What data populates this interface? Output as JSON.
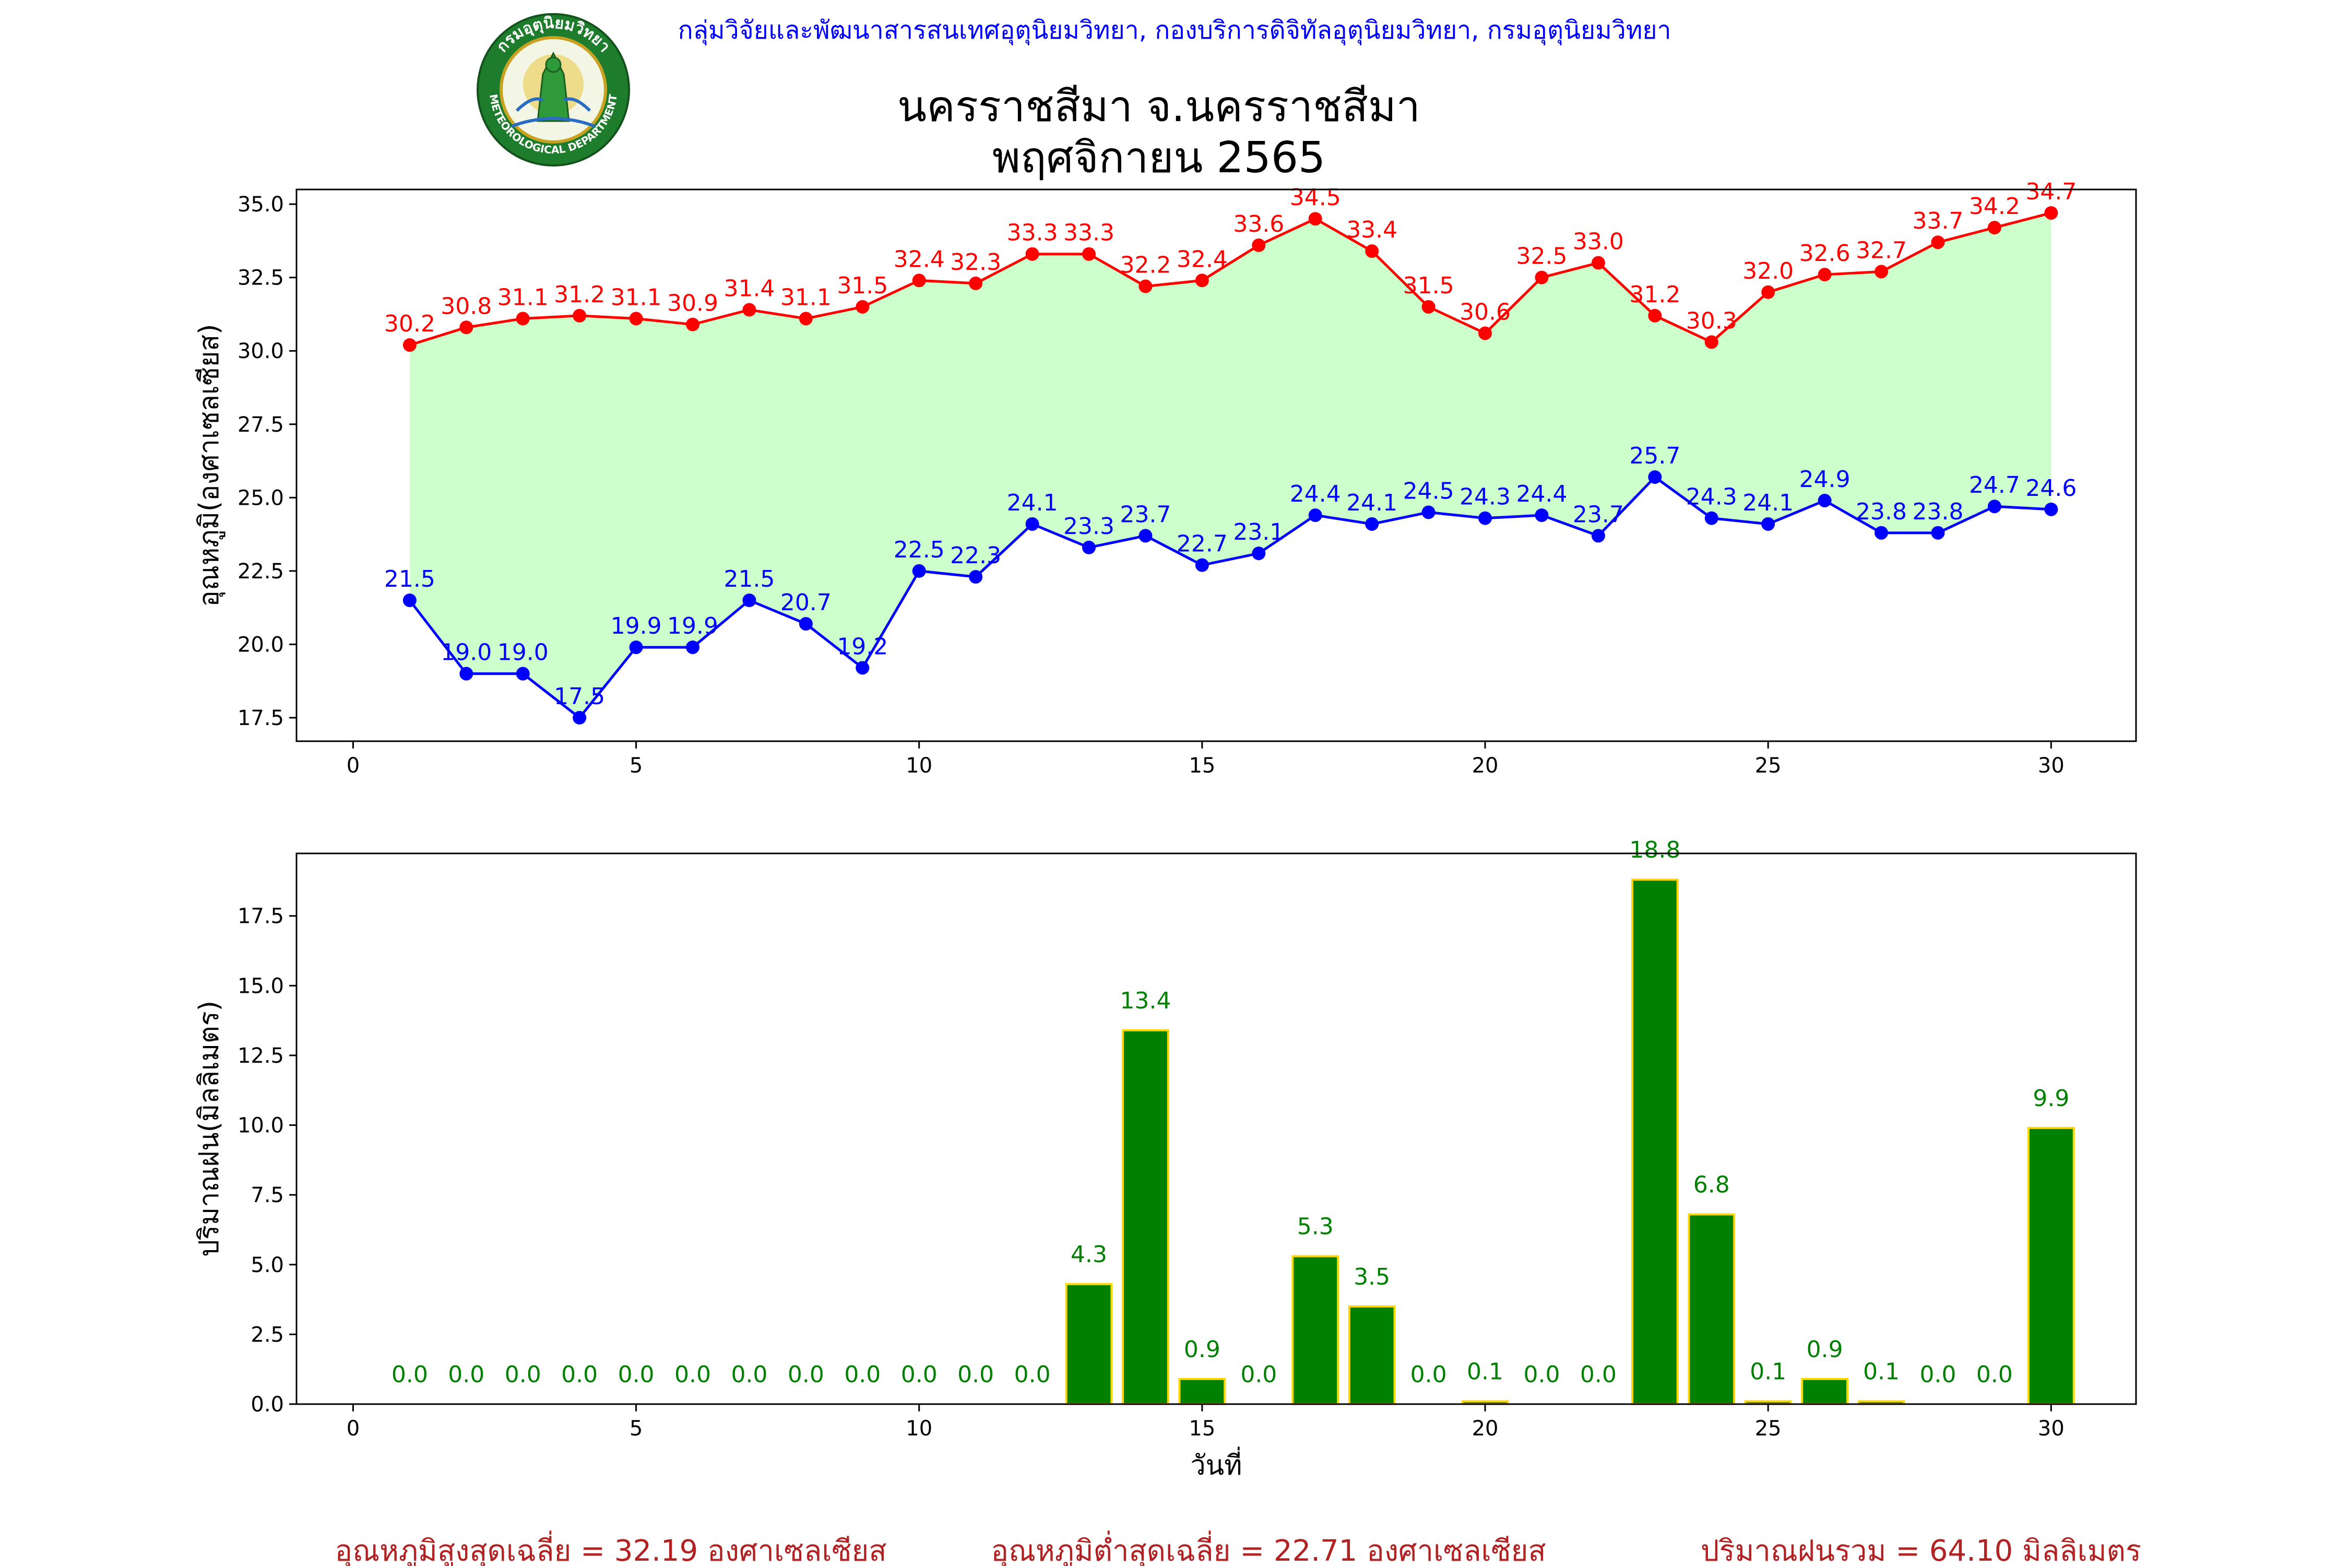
{
  "header": {
    "org_line": "กลุ่มวิจัยและพัฒนาสารสนเทศอุตุนิยมวิทยา, กองบริการดิจิทัลอุตุนิยมวิทยา, กรมอุตุนิยมวิทยา",
    "title_line1": "นครราชสีมา จ.นครราชสีมา",
    "title_line2": "พฤศจิกายน 2565",
    "logo": {
      "name": "meteorological-department-logo",
      "text_top": "กรมอุตุนิยมวิทยา",
      "text_bottom": "METEOROLOGICAL DEPARTMENT"
    }
  },
  "colors": {
    "max_temp": "#ff0000",
    "min_temp": "#0000ff",
    "fill": "#ccffcc",
    "bar_fill": "#008000",
    "bar_edge": "#ffd700",
    "bar_label": "#008000",
    "summary_text": "#b22222",
    "org_text": "#0000ff"
  },
  "chart_data": [
    {
      "type": "line",
      "ylabel": "อุณหภูมิ(องศาเซลเซียส)",
      "xlabel": "",
      "xlim": [
        -1,
        31.5
      ],
      "ylim": [
        16.7,
        35.5
      ],
      "xticks": [
        0,
        5,
        10,
        15,
        20,
        25,
        30
      ],
      "yticks": [
        17.5,
        20.0,
        22.5,
        25.0,
        27.5,
        30.0,
        32.5,
        35.0
      ],
      "x": [
        1,
        2,
        3,
        4,
        5,
        6,
        7,
        8,
        9,
        10,
        11,
        12,
        13,
        14,
        15,
        16,
        17,
        18,
        19,
        20,
        21,
        22,
        23,
        24,
        25,
        26,
        27,
        28,
        29,
        30
      ],
      "series": [
        {
          "key": "max",
          "values": [
            30.2,
            30.8,
            31.1,
            31.2,
            31.1,
            30.9,
            31.4,
            31.1,
            31.5,
            32.4,
            32.3,
            33.3,
            33.3,
            32.2,
            32.4,
            33.6,
            34.5,
            33.4,
            31.5,
            30.6,
            32.5,
            33.0,
            31.2,
            30.3,
            32.0,
            32.6,
            32.7,
            33.7,
            34.2,
            34.7
          ]
        },
        {
          "key": "min",
          "values": [
            21.5,
            19.0,
            19.0,
            17.5,
            19.9,
            19.9,
            21.5,
            20.7,
            19.2,
            22.5,
            22.3,
            24.1,
            23.3,
            23.7,
            22.7,
            23.1,
            24.4,
            24.1,
            24.5,
            24.3,
            24.4,
            23.7,
            25.7,
            24.3,
            24.1,
            24.9,
            23.8,
            23.8,
            24.7,
            24.6
          ]
        }
      ],
      "fill_between": true,
      "grid": false
    },
    {
      "type": "bar",
      "ylabel": "ปริมาณฝน(มิลลิเมตร)",
      "xlabel": "วันที่",
      "xlim": [
        -1,
        31.5
      ],
      "ylim": [
        0,
        19.74
      ],
      "xticks": [
        0,
        5,
        10,
        15,
        20,
        25,
        30
      ],
      "yticks": [
        0.0,
        2.5,
        5.0,
        7.5,
        10.0,
        12.5,
        15.0,
        17.5
      ],
      "x": [
        1,
        2,
        3,
        4,
        5,
        6,
        7,
        8,
        9,
        10,
        11,
        12,
        13,
        14,
        15,
        16,
        17,
        18,
        19,
        20,
        21,
        22,
        23,
        24,
        25,
        26,
        27,
        28,
        29,
        30
      ],
      "values": [
        0.0,
        0.0,
        0.0,
        0.0,
        0.0,
        0.0,
        0.0,
        0.0,
        0.0,
        0.0,
        0.0,
        0.0,
        4.3,
        13.4,
        0.9,
        0.0,
        5.3,
        3.5,
        0.0,
        0.1,
        0.0,
        0.0,
        18.8,
        6.8,
        0.1,
        0.9,
        0.1,
        0.0,
        0.0,
        9.9
      ],
      "grid": false
    }
  ],
  "summary": {
    "avg_max": "อุณหภูมิสูงสุดเฉลี่ย = 32.19 องศาเซลเซียส",
    "avg_min": "อุณหภูมิต่ำสุดเฉลี่ย = 22.71 องศาเซลเซียส",
    "total_rain": "ปริมาณฝนรวม = 64.10 มิลลิเมตร"
  }
}
